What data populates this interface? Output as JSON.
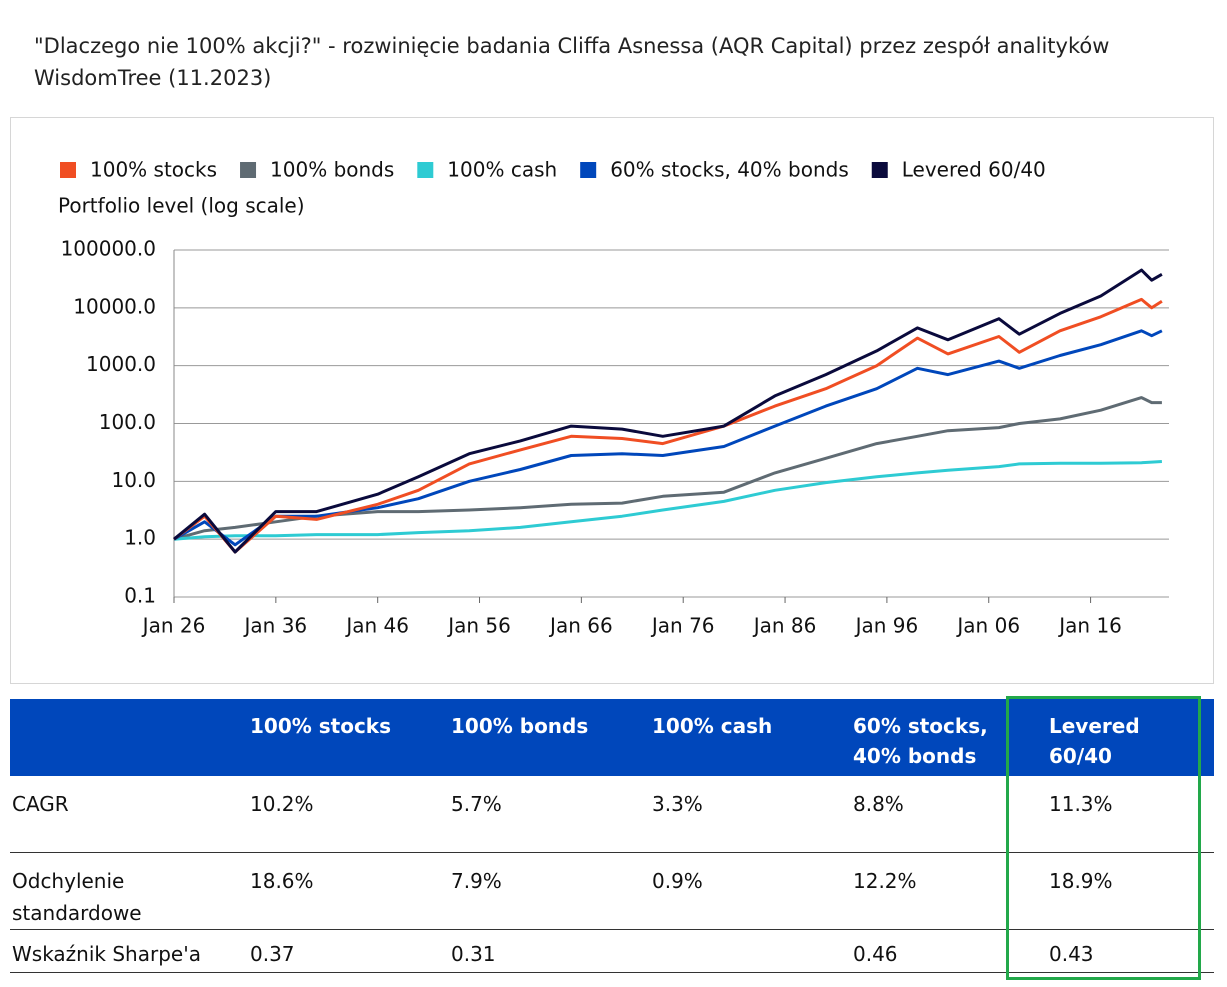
{
  "header": {
    "title": "\"Dlaczego nie 100% akcji?\" - rozwinięcie badania Cliffa Asnessa (AQR Capital) przez zespół analityków WisdomTree (11.2023)"
  },
  "chart_data": {
    "type": "line",
    "ylabel": "Portfolio level (log scale)",
    "log_scale": true,
    "grid": true,
    "x": [
      1926,
      1929,
      1932,
      1936,
      1940,
      1946,
      1950,
      1955,
      1960,
      1965,
      1970,
      1974,
      1980,
      1985,
      1990,
      1995,
      1999,
      2002,
      2007,
      2009,
      2013,
      2017,
      2021,
      2022,
      2023
    ],
    "xlim": [
      1926,
      2023.7
    ],
    "xticks": [
      {
        "value": 1926,
        "label": "Jan 26"
      },
      {
        "value": 1936,
        "label": "Jan 36"
      },
      {
        "value": 1946,
        "label": "Jan 46"
      },
      {
        "value": 1956,
        "label": "Jan 56"
      },
      {
        "value": 1966,
        "label": "Jan 66"
      },
      {
        "value": 1976,
        "label": "Jan 76"
      },
      {
        "value": 1986,
        "label": "Jan 86"
      },
      {
        "value": 1996,
        "label": "Jan 96"
      },
      {
        "value": 2006,
        "label": "Jan 06"
      },
      {
        "value": 2016,
        "label": "Jan 16"
      }
    ],
    "ylim": [
      0.1,
      100000
    ],
    "yticks": [
      0.1,
      {
        "value": 1,
        "label": "1.0"
      },
      {
        "value": 10,
        "label": "10.0"
      },
      {
        "value": 100,
        "label": "100.0"
      },
      {
        "value": 1000,
        "label": "1000.0"
      },
      {
        "value": 10000,
        "label": "10000.0"
      },
      {
        "value": 100000,
        "label": "100000.0"
      }
    ],
    "series": [
      {
        "name": "100% stocks",
        "color": "#f04e23",
        "values": [
          1,
          2.5,
          0.6,
          2.5,
          2.2,
          4,
          7,
          20,
          35,
          60,
          55,
          45,
          90,
          200,
          400,
          1000,
          3000,
          1600,
          3200,
          1700,
          4000,
          7000,
          14000,
          10000,
          13000
        ]
      },
      {
        "name": "100% bonds",
        "color": "#5f6b73",
        "values": [
          1,
          1.4,
          1.6,
          2,
          2.5,
          3,
          3,
          3.2,
          3.5,
          4,
          4.2,
          5.5,
          6.5,
          14,
          25,
          45,
          60,
          75,
          85,
          100,
          120,
          170,
          280,
          230,
          230
        ]
      },
      {
        "name": "100% cash",
        "color": "#2ecbd3",
        "values": [
          1,
          1.1,
          1.15,
          1.15,
          1.2,
          1.2,
          1.3,
          1.4,
          1.6,
          2,
          2.5,
          3.2,
          4.5,
          7,
          9.5,
          12,
          14,
          15.5,
          18,
          20,
          20.5,
          20.5,
          21,
          21.5,
          22
        ]
      },
      {
        "name": "60% stocks, 40% bonds",
        "color": "#0047bb",
        "values": [
          1,
          2,
          0.8,
          2.5,
          2.5,
          3.5,
          5,
          10,
          16,
          28,
          30,
          28,
          40,
          90,
          200,
          400,
          900,
          700,
          1200,
          900,
          1500,
          2300,
          4000,
          3300,
          4000
        ]
      },
      {
        "name": "Levered 60/40",
        "color": "#0a0a3c",
        "values": [
          1,
          2.7,
          0.6,
          3,
          3,
          6,
          12,
          30,
          50,
          90,
          80,
          60,
          90,
          300,
          700,
          1800,
          4500,
          2800,
          6500,
          3500,
          8000,
          16000,
          45000,
          30000,
          38000
        ]
      }
    ]
  },
  "table": {
    "columns": [
      "100% stocks",
      "100% bonds",
      "100% cash",
      "60% stocks, 40% bonds",
      "Levered 60/40"
    ],
    "rows": [
      {
        "label": "CAGR",
        "cells": [
          "10.2%",
          "5.7%",
          "3.3%",
          "8.8%",
          "11.3%"
        ]
      },
      {
        "label": "Odchylenie standardowe",
        "cells": [
          "18.6%",
          "7.9%",
          "0.9%",
          "12.2%",
          "18.9%"
        ]
      },
      {
        "label": "Wskaźnik Sharpe'a",
        "cells": [
          "0.37",
          "0.31",
          null,
          "0.46",
          "0.43"
        ]
      }
    ]
  }
}
